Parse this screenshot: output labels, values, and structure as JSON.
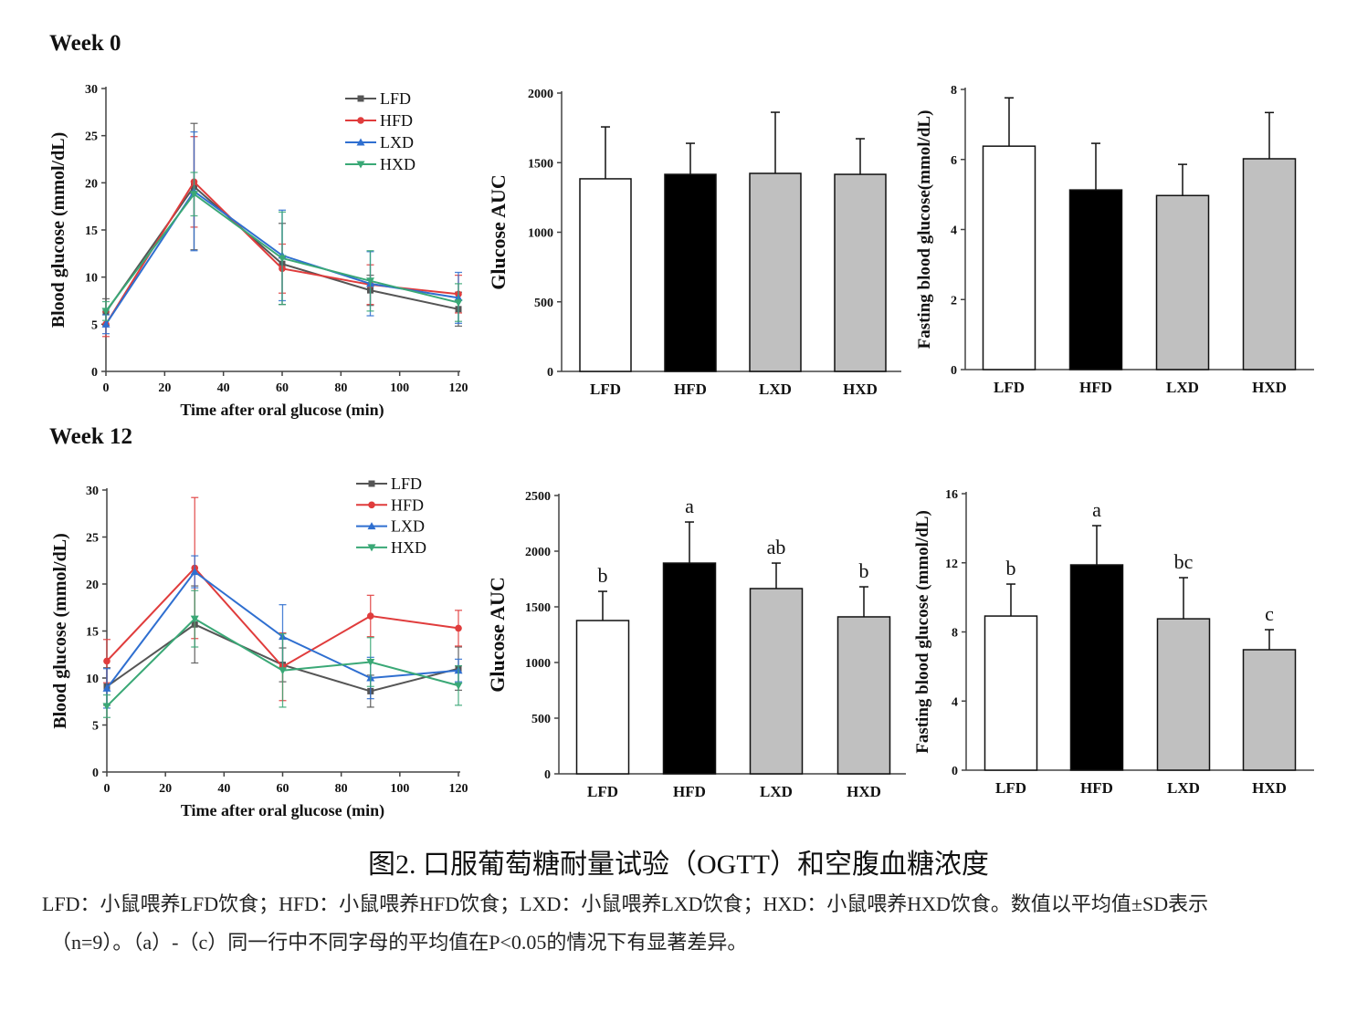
{
  "headings": {
    "week0": "Week 0",
    "week12": "Week 12"
  },
  "figure_title": "图2. 口服葡萄糖耐量试验（OGTT）和空腹血糖浓度",
  "caption": [
    "LFD：小鼠喂养LFD饮食；HFD：小鼠喂养HFD饮食；LXD：小鼠喂养LXD饮食；HXD：小鼠喂养HXD饮食。数值以平均值±SD表示",
    "（n=9）。（a）-（c）同一行中不同字母的平均值在P<0.05的情况下有显著差异。"
  ],
  "colors": {
    "LFD": "#555555",
    "HFD": "#e03c3c",
    "LXD": "#2f6fd0",
    "HXD": "#3aa876",
    "bar_LFD": "#ffffff",
    "bar_HFD": "#000000",
    "bar_LXD": "#c0c0c0",
    "bar_HXD": "#c0c0c0"
  },
  "chart_data": [
    {
      "id": "w0-ogtt",
      "type": "line",
      "xlabel": "Time after oral glucose (min)",
      "ylabel": "Blood glucose (mmol/dL)",
      "xlim": [
        0,
        120
      ],
      "ylim": [
        0,
        30
      ],
      "xticks": [
        0,
        20,
        40,
        60,
        80,
        100,
        120
      ],
      "yticks": [
        0,
        5,
        10,
        15,
        20,
        25,
        30
      ],
      "x": [
        0,
        30,
        60,
        90,
        120
      ],
      "legend": "top-right",
      "series": [
        {
          "name": "LFD",
          "marker": "square",
          "values": [
            6.3,
            19.6,
            11.4,
            8.6,
            6.6
          ],
          "sd": [
            1.4,
            6.7,
            4.3,
            1.6,
            1.8
          ]
        },
        {
          "name": "HFD",
          "marker": "circle",
          "values": [
            5.0,
            20.1,
            10.9,
            9.2,
            8.2
          ],
          "sd": [
            1.3,
            4.8,
            2.6,
            2.1,
            2.0
          ]
        },
        {
          "name": "LXD",
          "marker": "triangle-up",
          "values": [
            5.0,
            19.1,
            12.3,
            9.3,
            7.8
          ],
          "sd": [
            1.0,
            6.3,
            4.8,
            3.4,
            2.7
          ]
        },
        {
          "name": "HXD",
          "marker": "triangle-down",
          "values": [
            6.4,
            18.8,
            12.0,
            9.6,
            7.3
          ],
          "sd": [
            1.0,
            2.3,
            4.9,
            3.2,
            2.0
          ]
        }
      ]
    },
    {
      "id": "w0-auc",
      "type": "bar",
      "ylabel": "Glucose AUC",
      "ylim": [
        0,
        2000
      ],
      "yticks": [
        0,
        500,
        1000,
        1500,
        2000
      ],
      "categories": [
        "LFD",
        "HFD",
        "LXD",
        "HXD"
      ],
      "values": [
        1384,
        1416,
        1423,
        1416
      ],
      "sd": [
        373,
        223,
        439,
        256
      ],
      "letters": []
    },
    {
      "id": "w0-fbg",
      "type": "bar",
      "ylabel": "Fasting blood glucose(mmol/dL)",
      "ylim": [
        0,
        8
      ],
      "yticks": [
        0,
        2,
        4,
        6,
        8
      ],
      "categories": [
        "LFD",
        "HFD",
        "LXD",
        "HXD"
      ],
      "values": [
        6.38,
        5.13,
        4.97,
        6.02
      ],
      "sd": [
        1.38,
        1.33,
        0.89,
        1.32
      ],
      "letters": []
    },
    {
      "id": "w12-ogtt",
      "type": "line",
      "xlabel": "Time after oral glucose (min)",
      "ylabel": "Blood glucose (mmol/dL)",
      "xlim": [
        0,
        120
      ],
      "ylim": [
        0,
        30
      ],
      "xticks": [
        0,
        20,
        40,
        60,
        80,
        100,
        120
      ],
      "yticks": [
        0,
        5,
        10,
        15,
        20,
        25,
        30
      ],
      "x": [
        0,
        30,
        60,
        90,
        120
      ],
      "legend": "top-right",
      "series": [
        {
          "name": "LFD",
          "marker": "square",
          "values": [
            9.1,
            15.7,
            11.4,
            8.6,
            11.0
          ],
          "sd": [
            2.0,
            4.1,
            1.8,
            1.7,
            2.3
          ]
        },
        {
          "name": "HFD",
          "marker": "circle",
          "values": [
            11.8,
            21.7,
            11.2,
            16.6,
            15.3
          ],
          "sd": [
            2.3,
            7.5,
            3.6,
            2.2,
            1.9
          ]
        },
        {
          "name": "LXD",
          "marker": "triangle-up",
          "values": [
            8.9,
            21.3,
            14.4,
            10.0,
            10.8
          ],
          "sd": [
            2.1,
            1.7,
            3.4,
            2.2,
            1.2
          ]
        },
        {
          "name": "HXD",
          "marker": "triangle-down",
          "values": [
            7.0,
            16.3,
            10.8,
            11.7,
            9.2
          ],
          "sd": [
            1.2,
            3.0,
            3.9,
            2.6,
            2.1
          ]
        }
      ]
    },
    {
      "id": "w12-auc",
      "type": "bar",
      "ylabel": "Glucose AUC",
      "ylim": [
        0,
        2500
      ],
      "yticks": [
        0,
        500,
        1000,
        1500,
        2000,
        2500
      ],
      "categories": [
        "LFD",
        "HFD",
        "LXD",
        "HXD"
      ],
      "values": [
        1377,
        1893,
        1664,
        1410
      ],
      "sd": [
        262,
        369,
        229,
        270
      ],
      "letters": [
        "b",
        "a",
        "ab",
        "b"
      ]
    },
    {
      "id": "w12-fbg",
      "type": "bar",
      "ylabel": "Fasting blood glucose (mmol/dL)",
      "ylim": [
        0,
        16
      ],
      "yticks": [
        0,
        4,
        8,
        12,
        16
      ],
      "categories": [
        "LFD",
        "HFD",
        "LXD",
        "HXD"
      ],
      "values": [
        8.92,
        11.88,
        8.76,
        6.97
      ],
      "sd": [
        1.85,
        2.27,
        2.38,
        1.16
      ],
      "letters": [
        "b",
        "a",
        "bc",
        "c"
      ]
    }
  ]
}
